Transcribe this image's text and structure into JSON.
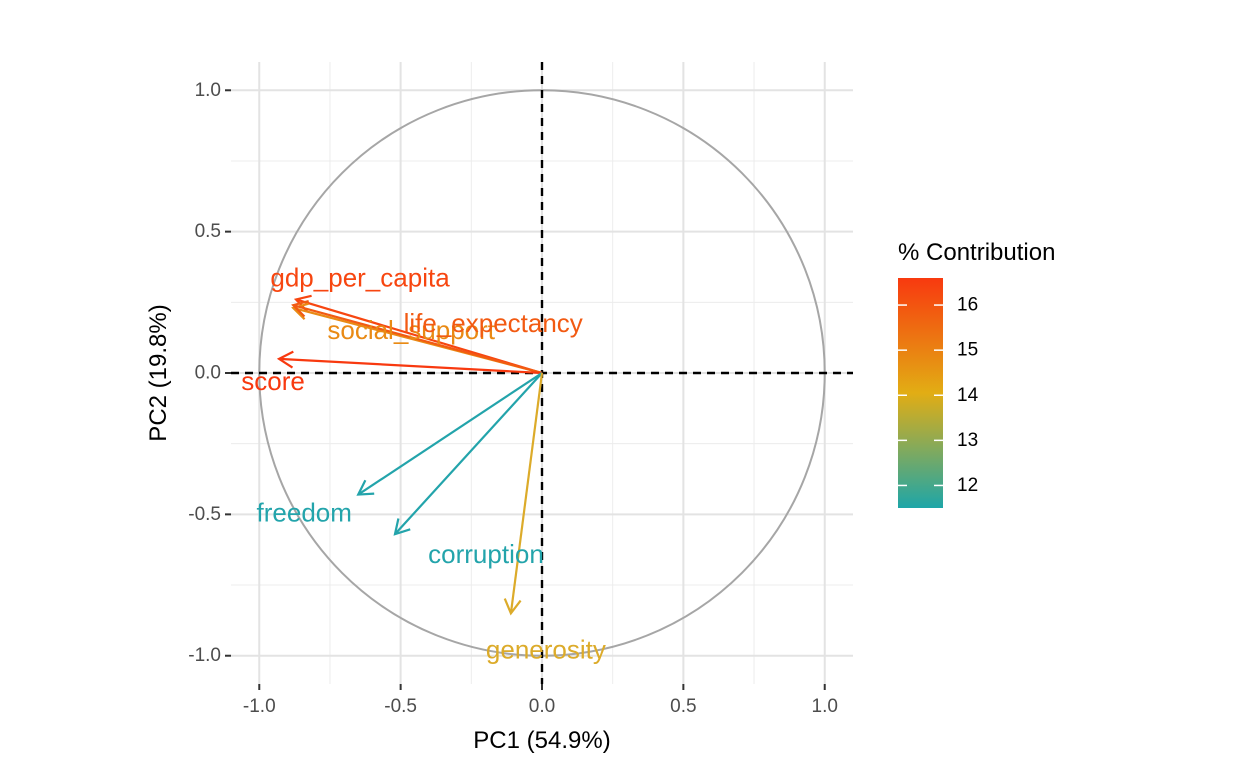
{
  "chart_data": {
    "type": "scatter",
    "subtype": "pca-variable-correlation-circle",
    "xlabel": "PC1 (54.9%)",
    "ylabel": "PC2 (19.8%)",
    "xlim": [
      -1.1,
      1.1
    ],
    "ylim": [
      -1.1,
      1.1
    ],
    "xticks": [
      -1.0,
      -0.5,
      0.0,
      0.5,
      1.0
    ],
    "yticks": [
      -1.0,
      -0.5,
      0.0,
      0.5,
      1.0
    ],
    "x_tick_labels": [
      "-1.0",
      "-0.5",
      "0.0",
      "0.5",
      "1.0"
    ],
    "y_tick_labels": [
      "-1.0",
      "-0.5",
      "0.0",
      "0.5",
      "1.0"
    ],
    "grid": true,
    "unit_circle": true,
    "reference_lines": [
      {
        "orientation": "vertical",
        "value": 0
      },
      {
        "orientation": "horizontal",
        "value": 0
      }
    ],
    "legend": {
      "title": "% Contribution",
      "type": "colorbar",
      "placement": "right",
      "range": [
        11.5,
        16.6
      ],
      "ticks": [
        12,
        13,
        14,
        15,
        16
      ],
      "tick_labels": [
        "12",
        "13",
        "14",
        "15",
        "16"
      ],
      "colors": [
        "#1ea6a8",
        "#e2ad14",
        "#f8390f"
      ]
    },
    "variables": [
      {
        "name": "gdp_per_capita",
        "x": -0.87,
        "y": 0.26,
        "contribution": 16.4,
        "color": "#f74610"
      },
      {
        "name": "social_support",
        "x": -0.88,
        "y": 0.23,
        "contribution": 15.3,
        "color": "#e98a14"
      },
      {
        "name": "life_expectancy",
        "x": -0.88,
        "y": 0.24,
        "contribution": 15.8,
        "color": "#f25a12"
      },
      {
        "name": "score",
        "x": -0.93,
        "y": 0.05,
        "contribution": 16.6,
        "color": "#f8390f"
      },
      {
        "name": "freedom",
        "x": -0.65,
        "y": -0.43,
        "contribution": 11.6,
        "color": "#23a4ab"
      },
      {
        "name": "corruption",
        "x": -0.52,
        "y": -0.57,
        "contribution": 11.6,
        "color": "#23a4ab"
      },
      {
        "name": "generosity",
        "x": -0.11,
        "y": -0.85,
        "contribution": 13.8,
        "color": "#dcab2a"
      }
    ]
  }
}
